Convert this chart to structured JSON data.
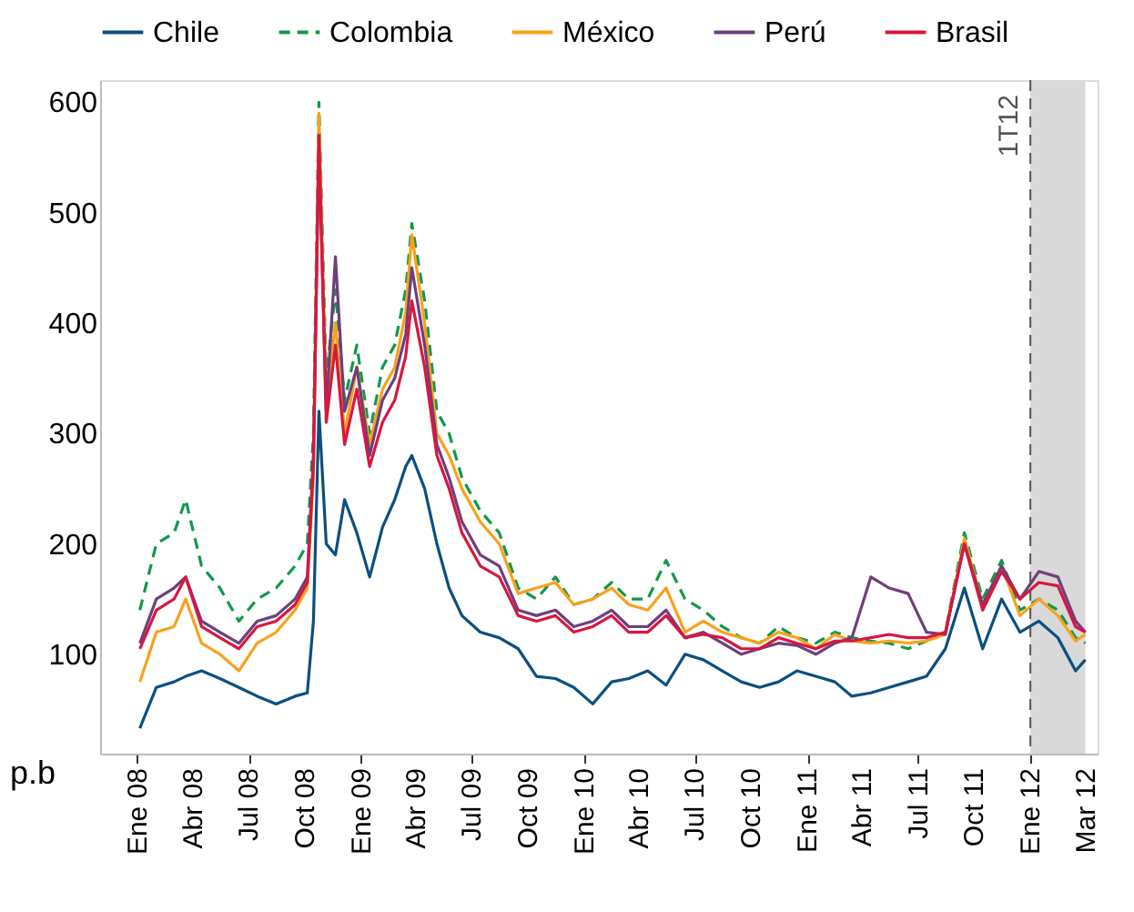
{
  "chart_data": {
    "type": "line",
    "ylabel": "p.b",
    "legend": "top",
    "grid": false,
    "x": [
      "2008-01-05",
      "2008-02-01",
      "2008-03-01",
      "2008-03-20",
      "2008-04-15",
      "2008-05-15",
      "2008-06-15",
      "2008-07-15",
      "2008-08-15",
      "2008-09-15",
      "2008-10-05",
      "2008-10-15",
      "2008-10-24",
      "2008-11-05",
      "2008-11-20",
      "2008-12-05",
      "2008-12-25",
      "2009-01-15",
      "2009-02-05",
      "2009-02-25",
      "2009-03-15",
      "2009-03-25",
      "2009-04-15",
      "2009-05-05",
      "2009-05-25",
      "2009-06-15",
      "2009-07-15",
      "2009-08-15",
      "2009-09-15",
      "2009-10-15",
      "2009-11-15",
      "2009-12-15",
      "2010-01-15",
      "2010-02-15",
      "2010-03-15",
      "2010-04-15",
      "2010-05-15",
      "2010-06-15",
      "2010-07-15",
      "2010-08-15",
      "2010-09-15",
      "2010-10-15",
      "2010-11-15",
      "2010-12-15",
      "2011-01-15",
      "2011-02-15",
      "2011-03-15",
      "2011-04-15",
      "2011-05-15",
      "2011-06-15",
      "2011-07-15",
      "2011-08-15",
      "2011-09-15",
      "2011-10-15",
      "2011-11-15",
      "2011-12-15",
      "2012-01-15",
      "2012-02-15",
      "2012-03-15",
      "2012-03-31"
    ],
    "series": [
      {
        "name": "Chile",
        "color": "#0b4f7f",
        "line_style": "solid",
        "values": [
          33,
          70,
          75,
          80,
          85,
          78,
          70,
          62,
          55,
          62,
          65,
          130,
          320,
          200,
          190,
          240,
          210,
          170,
          215,
          240,
          270,
          280,
          250,
          200,
          160,
          135,
          120,
          115,
          105,
          80,
          78,
          70,
          55,
          75,
          78,
          85,
          72,
          100,
          95,
          85,
          75,
          70,
          75,
          85,
          80,
          75,
          62,
          65,
          70,
          75,
          80,
          105,
          160,
          105,
          150,
          120,
          130,
          115,
          85,
          95
        ]
      },
      {
        "name": "Colombia",
        "color": "#10994a",
        "line_style": "dashed",
        "values": [
          140,
          200,
          210,
          240,
          180,
          160,
          130,
          150,
          160,
          180,
          200,
          300,
          600,
          350,
          430,
          330,
          380,
          300,
          360,
          380,
          430,
          490,
          420,
          320,
          300,
          260,
          230,
          210,
          160,
          150,
          170,
          145,
          150,
          165,
          150,
          150,
          185,
          150,
          140,
          125,
          115,
          110,
          125,
          115,
          110,
          120,
          115,
          112,
          110,
          105,
          112,
          120,
          210,
          150,
          185,
          140,
          150,
          140,
          115,
          110
        ]
      },
      {
        "name": "México",
        "color": "#f9a11b",
        "line_style": "solid",
        "values": [
          75,
          120,
          125,
          150,
          110,
          100,
          85,
          110,
          120,
          140,
          160,
          260,
          590,
          330,
          400,
          300,
          360,
          290,
          340,
          360,
          410,
          480,
          400,
          300,
          280,
          250,
          220,
          200,
          155,
          160,
          165,
          145,
          150,
          160,
          145,
          140,
          160,
          120,
          130,
          120,
          115,
          110,
          120,
          115,
          105,
          118,
          112,
          110,
          112,
          110,
          112,
          118,
          205,
          145,
          180,
          135,
          150,
          135,
          112,
          118
        ]
      },
      {
        "name": "Perú",
        "color": "#6e3f7c",
        "line_style": "solid",
        "values": [
          110,
          150,
          160,
          170,
          130,
          120,
          110,
          130,
          135,
          150,
          170,
          280,
          560,
          320,
          460,
          320,
          360,
          280,
          330,
          350,
          390,
          450,
          380,
          290,
          260,
          220,
          190,
          180,
          140,
          135,
          140,
          125,
          130,
          140,
          125,
          125,
          140,
          115,
          120,
          110,
          100,
          105,
          110,
          108,
          100,
          110,
          115,
          170,
          160,
          155,
          120,
          118,
          200,
          145,
          180,
          150,
          175,
          170,
          130,
          120
        ]
      },
      {
        "name": "Brasil",
        "color": "#d7173f",
        "line_style": "solid",
        "values": [
          105,
          140,
          150,
          170,
          125,
          115,
          105,
          125,
          130,
          145,
          165,
          270,
          570,
          310,
          380,
          290,
          340,
          270,
          310,
          330,
          370,
          420,
          360,
          280,
          250,
          210,
          180,
          170,
          135,
          130,
          135,
          120,
          125,
          135,
          120,
          120,
          135,
          115,
          118,
          115,
          105,
          105,
          115,
          110,
          105,
          112,
          112,
          115,
          118,
          115,
          115,
          120,
          200,
          140,
          175,
          150,
          165,
          162,
          125,
          120
        ]
      }
    ],
    "xlim": [
      "2007-11-01",
      "2012-04-20"
    ],
    "xticks": [
      {
        "value": "2008-01-01",
        "label": "Ene 08"
      },
      {
        "value": "2008-04-01",
        "label": "Abr 08"
      },
      {
        "value": "2008-07-01",
        "label": "Jul 08"
      },
      {
        "value": "2008-10-01",
        "label": "Oct 08"
      },
      {
        "value": "2009-01-01",
        "label": "Ene 09"
      },
      {
        "value": "2009-04-01",
        "label": "Abr 09"
      },
      {
        "value": "2009-07-01",
        "label": "Jul 09"
      },
      {
        "value": "2009-10-01",
        "label": "Oct 09"
      },
      {
        "value": "2010-01-01",
        "label": "Ene 10"
      },
      {
        "value": "2010-04-01",
        "label": "Abr 10"
      },
      {
        "value": "2010-07-01",
        "label": "Jul 10"
      },
      {
        "value": "2010-10-01",
        "label": "Oct 10"
      },
      {
        "value": "2011-01-01",
        "label": "Ene 11"
      },
      {
        "value": "2011-04-01",
        "label": "Abr 11"
      },
      {
        "value": "2011-07-01",
        "label": "Jul 11"
      },
      {
        "value": "2011-10-01",
        "label": "Oct 11"
      },
      {
        "value": "2012-01-01",
        "label": "Ene 12"
      },
      {
        "value": "2012-03-31",
        "label": "Mar 12"
      }
    ],
    "ylim": [
      10,
      620
    ],
    "yticks": [
      100,
      200,
      300,
      400,
      500,
      600
    ],
    "bands": [
      {
        "axis": "x",
        "from": "2012-01-01",
        "to": "2012-03-31",
        "color": "#d9d9d9"
      }
    ],
    "ref_lines": [
      {
        "axis": "x",
        "value": "2012-01-01",
        "label": "1T12",
        "color": "#555555",
        "line_style": "dashed"
      }
    ]
  }
}
